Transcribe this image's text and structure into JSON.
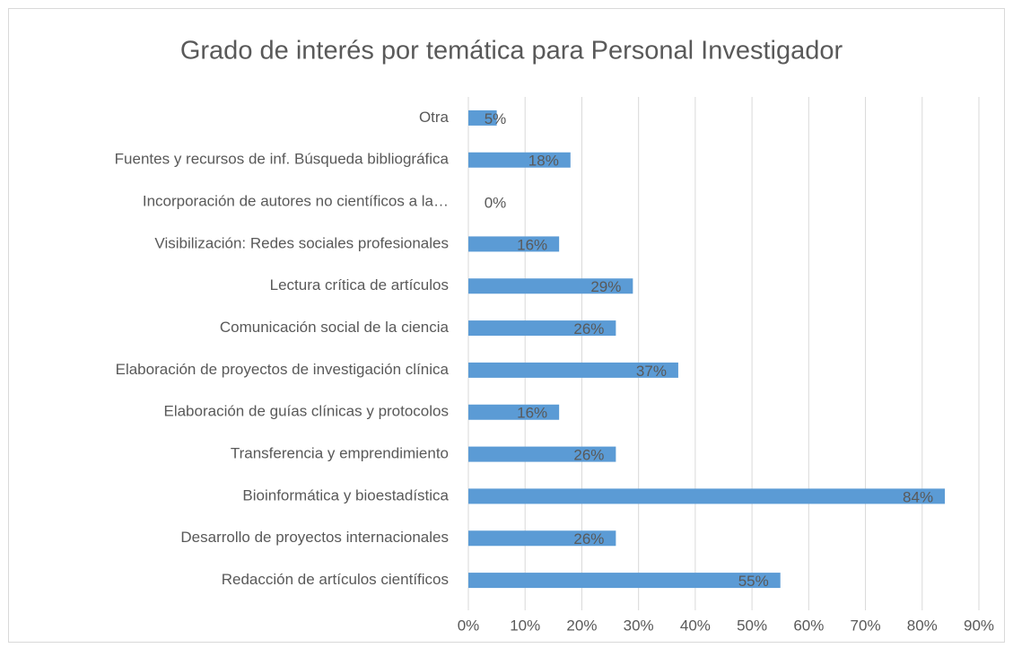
{
  "chart_data": {
    "type": "barh",
    "title": "Grado de interés por temática para Personal Investigador",
    "categories": [
      "Otra",
      "Fuentes y recursos de inf. Búsqueda bibliográfica",
      "Incorporación de autores no científicos a la…",
      "Visibilización: Redes sociales profesionales",
      "Lectura crítica de artículos",
      "Comunicación social de la ciencia",
      "Elaboración de proyectos de investigación clínica",
      "Elaboración de guías clínicas y protocolos",
      "Transferencia y emprendimiento",
      "Bioinformática y bioestadística",
      "Desarrollo de proyectos internacionales",
      "Redacción de artículos científicos"
    ],
    "values": [
      5,
      18,
      0,
      16,
      29,
      26,
      37,
      16,
      26,
      84,
      26,
      55
    ],
    "value_labels": [
      "5%",
      "18%",
      "0%",
      "16%",
      "29%",
      "26%",
      "37%",
      "16%",
      "26%",
      "84%",
      "26%",
      "55%"
    ],
    "color": "#5b9bd5",
    "xlim": [
      0,
      90
    ],
    "xticks": [
      {
        "value": 0,
        "label": "0%"
      },
      {
        "value": 10,
        "label": "10%"
      },
      {
        "value": 20,
        "label": "20%"
      },
      {
        "value": 30,
        "label": "30%"
      },
      {
        "value": 40,
        "label": "40%"
      },
      {
        "value": 50,
        "label": "50%"
      },
      {
        "value": 60,
        "label": "60%"
      },
      {
        "value": 70,
        "label": "70%"
      },
      {
        "value": 80,
        "label": "80%"
      },
      {
        "value": 90,
        "label": "90%"
      }
    ],
    "grid": true
  }
}
